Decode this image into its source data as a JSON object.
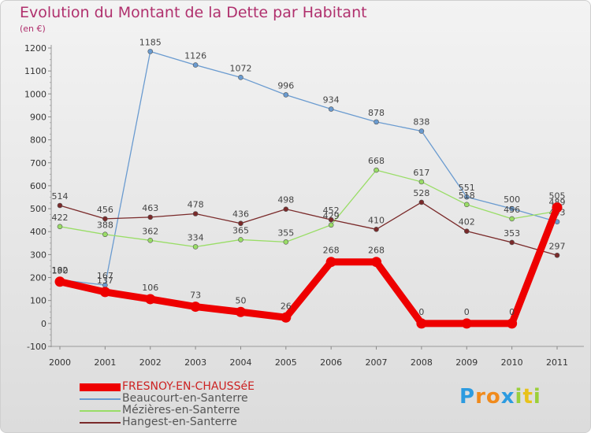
{
  "title": "Evolution du Montant de la Dette par Habitant",
  "subtitle": "(en €)",
  "chart_data": {
    "type": "line",
    "title": "Evolution du Montant de la Dette par Habitant",
    "ylabel": "(en €)",
    "xlabel": "",
    "x": [
      "2000",
      "2001",
      "2002",
      "2003",
      "2004",
      "2005",
      "2006",
      "2007",
      "2008",
      "2009",
      "2010",
      "2011"
    ],
    "ylim": [
      -100,
      1200
    ],
    "yticks": [
      -100,
      0,
      100,
      200,
      300,
      400,
      500,
      600,
      700,
      800,
      900,
      1000,
      1100,
      1200
    ],
    "grid": "horizontal minor tick marks only",
    "legend_position": "bottom-left",
    "series": [
      {
        "name": "FRESNOY-EN-CHAUSSéE",
        "color": "#ee0000",
        "highlight": true,
        "values": [
          182,
          137,
          106,
          73,
          50,
          26,
          268,
          268,
          0,
          0,
          0,
          505
        ]
      },
      {
        "name": "Beaucourt-en-Santerre",
        "color": "#6a9bd0",
        "highlight": false,
        "values": [
          190,
          167,
          1185,
          1126,
          1072,
          996,
          934,
          878,
          838,
          551,
          500,
          443
        ]
      },
      {
        "name": "Mézières-en-Santerre",
        "color": "#99dd66",
        "highlight": false,
        "values": [
          422,
          388,
          362,
          334,
          365,
          355,
          429,
          668,
          617,
          518,
          456,
          489
        ]
      },
      {
        "name": "Hangest-en-Santerre",
        "color": "#7a2a2a",
        "highlight": false,
        "values": [
          514,
          456,
          463,
          478,
          436,
          498,
          452,
          410,
          528,
          402,
          353,
          297
        ]
      }
    ]
  },
  "brand": {
    "letters": [
      "P",
      "r",
      "o",
      "x",
      "i",
      "t",
      "i"
    ],
    "colors": [
      "#2c9be0",
      "#f08a1c",
      "#f08a1c",
      "#2c9be0",
      "#9bcf3a",
      "#e8c21a",
      "#9bcf3a"
    ]
  }
}
